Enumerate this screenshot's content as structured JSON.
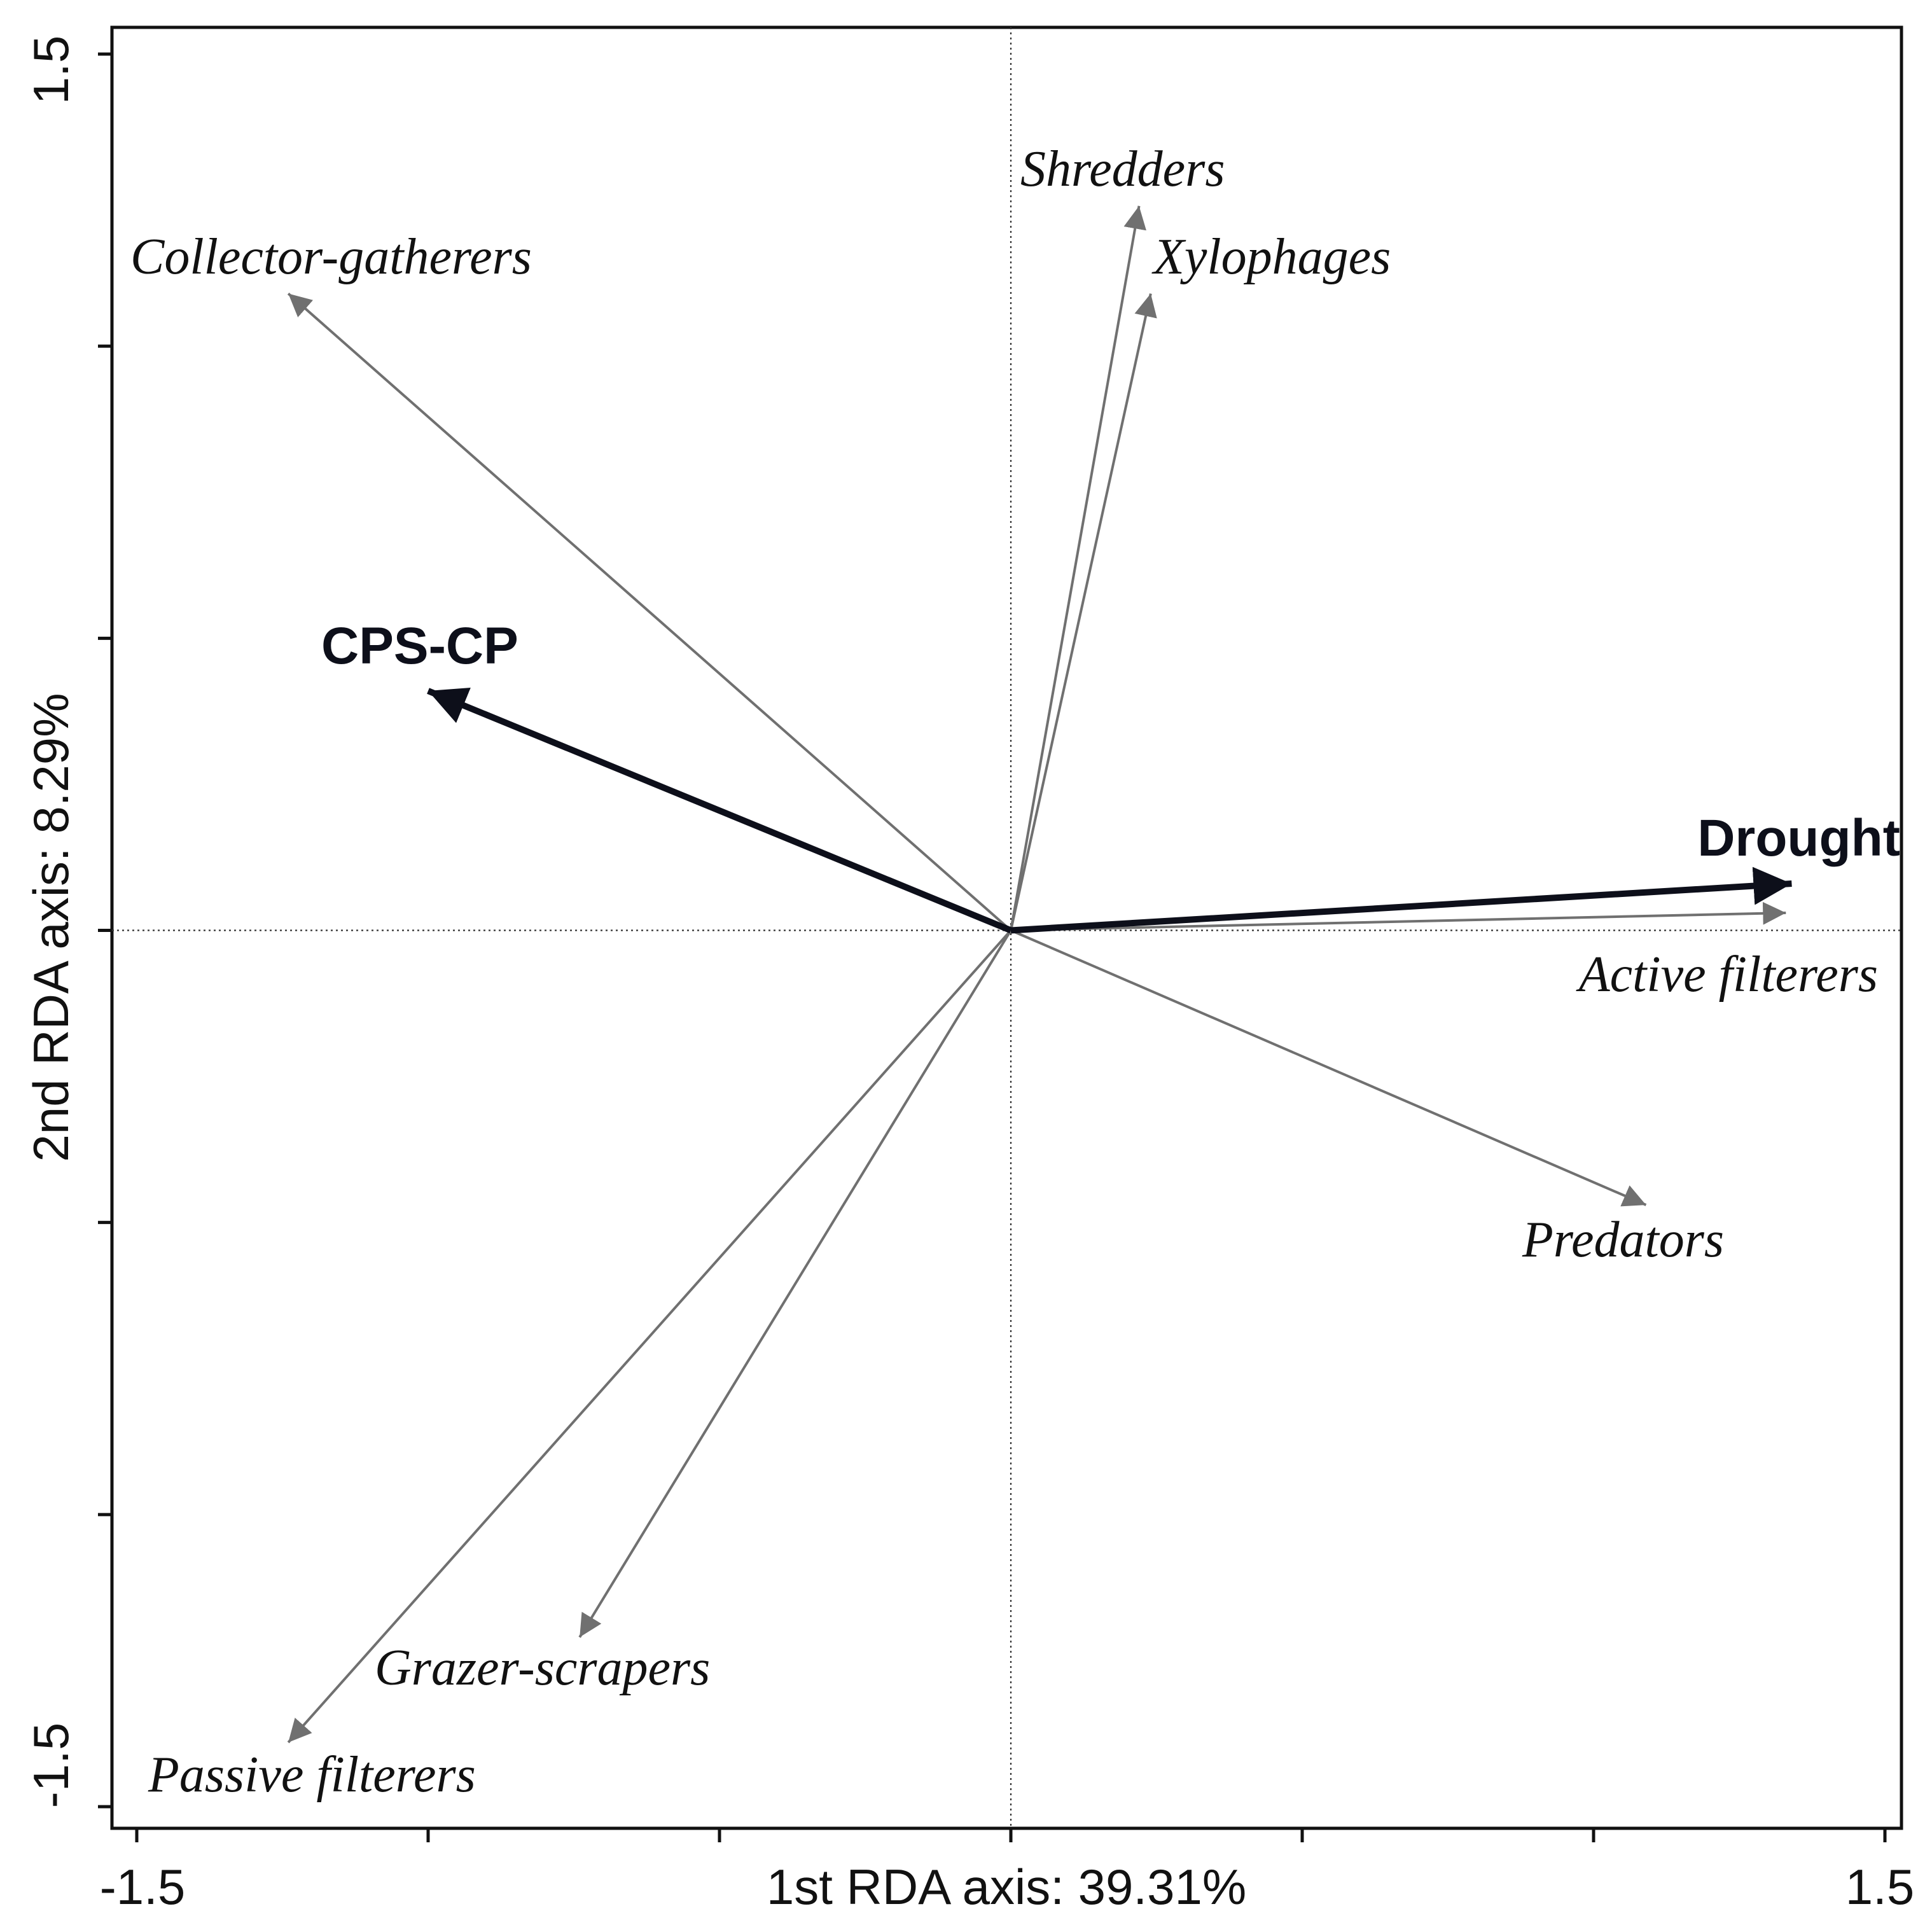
{
  "chart_data": {
    "type": "scatter",
    "subtype": "rda-biplot",
    "title": "",
    "xlabel": "1st RDA axis: 39.31%",
    "ylabel": "2nd RDA axis: 8.29%",
    "xlim": [
      -1.5,
      1.5
    ],
    "ylim": [
      -1.5,
      1.5
    ],
    "xticks": [
      -1.5,
      -1.0,
      -0.5,
      0.0,
      0.5,
      1.0,
      1.5
    ],
    "yticks": [
      -1.5,
      -1.0,
      -0.5,
      0.0,
      0.5,
      1.0,
      1.5
    ],
    "x_tick_labels": [
      {
        "value": -1.5,
        "label": "-1.5"
      },
      {
        "value": 1.5,
        "label": "1.5"
      }
    ],
    "y_tick_labels": [
      {
        "value": -1.5,
        "label": "-1.5"
      },
      {
        "value": 1.5,
        "label": "1.5"
      }
    ],
    "reference_lines": {
      "x": 0,
      "y": 0,
      "style": "dotted"
    },
    "species_arrows": [
      {
        "name": "Shredders",
        "x": 0.22,
        "y": 1.24,
        "color": "#707070"
      },
      {
        "name": "Xylophages",
        "x": 0.24,
        "y": 1.09,
        "color": "#707070"
      },
      {
        "name": "Collector-gatherers",
        "x": -1.24,
        "y": 1.09,
        "color": "#707070"
      },
      {
        "name": "Active filterers",
        "x": 1.33,
        "y": 0.03,
        "color": "#707070"
      },
      {
        "name": "Predators",
        "x": 1.09,
        "y": -0.47,
        "color": "#707070"
      },
      {
        "name": "Grazer-scrapers",
        "x": -0.74,
        "y": -1.21,
        "color": "#707070"
      },
      {
        "name": "Passive filterers",
        "x": -1.24,
        "y": -1.39,
        "color": "#707070"
      }
    ],
    "environmental_arrows": [
      {
        "name": "CPS-CP",
        "x": -1.0,
        "y": 0.41,
        "color": "#0d0f1a"
      },
      {
        "name": "Drought",
        "x": 1.34,
        "y": 0.08,
        "color": "#0d0f1a"
      }
    ]
  }
}
